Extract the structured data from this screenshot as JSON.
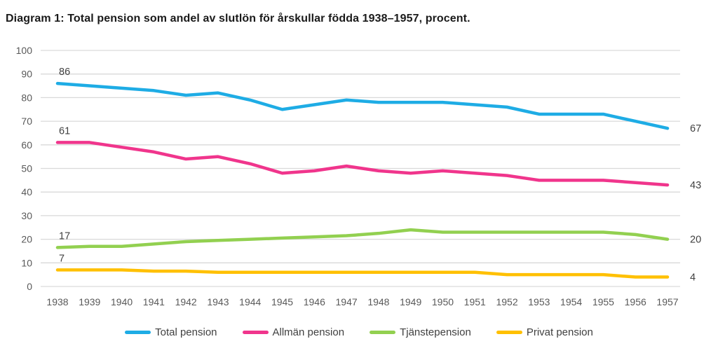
{
  "title": "Diagram 1: Total pension som andel av slutlön för årskullar födda 1938–1957, procent.",
  "colors": {
    "total": "#1EACE5",
    "allman": "#F0358C",
    "tjanste": "#92D050",
    "privat": "#FFC000",
    "grid": "#D9D9D9",
    "axis_text": "#595959",
    "label_text": "#404040"
  },
  "chart_data": {
    "type": "line",
    "x": [
      "1938",
      "1939",
      "1940",
      "1941",
      "1942",
      "1943",
      "1944",
      "1945",
      "1946",
      "1947",
      "1948",
      "1949",
      "1950",
      "1951",
      "1952",
      "1953",
      "1954",
      "1955",
      "1956",
      "1957"
    ],
    "xlabel": "",
    "ylabel": "",
    "ylim": [
      0,
      100
    ],
    "yticks": [
      0,
      10,
      20,
      30,
      40,
      50,
      60,
      70,
      80,
      90,
      100
    ],
    "grid": true,
    "legend_position": "bottom",
    "series": [
      {
        "name": "Total pension",
        "key": "total",
        "values": [
          86,
          85,
          84,
          83,
          81,
          82,
          79,
          75,
          77,
          79,
          78,
          78,
          78,
          77,
          76,
          73,
          73,
          73,
          70,
          67
        ],
        "start_label": "86",
        "end_label": "67"
      },
      {
        "name": "Allmän pension",
        "key": "allman",
        "values": [
          61,
          61,
          59,
          57,
          54,
          55,
          52,
          48,
          49,
          51,
          49,
          48,
          49,
          48,
          47,
          45,
          45,
          45,
          44,
          43
        ],
        "start_label": "61",
        "end_label": "43"
      },
      {
        "name": "Tjänstepension",
        "key": "tjanste",
        "values": [
          16.5,
          17,
          17,
          18,
          19,
          19.5,
          20,
          20.5,
          21,
          21.5,
          22.5,
          24,
          23,
          23,
          23,
          23,
          23,
          23,
          22,
          20
        ],
        "start_label": "17",
        "end_label": "20"
      },
      {
        "name": "Privat pension",
        "key": "privat",
        "values": [
          7,
          7,
          7,
          6.5,
          6.5,
          6,
          6,
          6,
          6,
          6,
          6,
          6,
          6,
          6,
          5,
          5,
          5,
          5,
          4,
          4
        ],
        "start_label": "7",
        "end_label": "4"
      }
    ]
  }
}
